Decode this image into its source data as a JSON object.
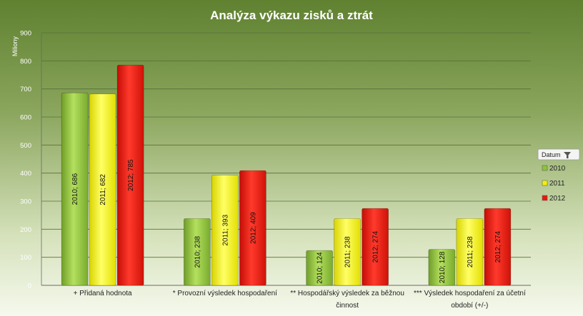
{
  "chart_data": {
    "type": "bar",
    "title": "Analýza výkazu zisků a ztrát",
    "ylabel": "Miliony",
    "xlabel": "",
    "ylim": [
      0,
      900
    ],
    "yticks": [
      0,
      100,
      200,
      300,
      400,
      500,
      600,
      700,
      800,
      900
    ],
    "grid": true,
    "legend_position": "right",
    "legend_header": "Datum",
    "categories": [
      [
        "+ Přidaná hodnota"
      ],
      [
        "* Provozní výsledek hospodaření"
      ],
      [
        "** Hospodářský výsledek za běžnou",
        "činnost"
      ],
      [
        "*** Výsledek hospodaření za účetní",
        "období (+/-)"
      ]
    ],
    "series": [
      {
        "name": "2010",
        "color": "#8cc43a",
        "values": [
          686,
          238,
          124,
          128
        ],
        "labels": [
          "2010; 686",
          "2010; 238",
          "2010; 124",
          "2010; 128"
        ]
      },
      {
        "name": "2011",
        "color": "#f2ef10",
        "values": [
          682,
          393,
          238,
          238
        ],
        "labels": [
          "2011; 682",
          "2011; 393",
          "2011; 238",
          "2011; 238"
        ]
      },
      {
        "name": "2012",
        "color": "#e8190f",
        "values": [
          785,
          409,
          274,
          274
        ],
        "labels": [
          "2012; 785",
          "2012; 409",
          "2012; 274",
          "2012; 274"
        ]
      }
    ]
  }
}
